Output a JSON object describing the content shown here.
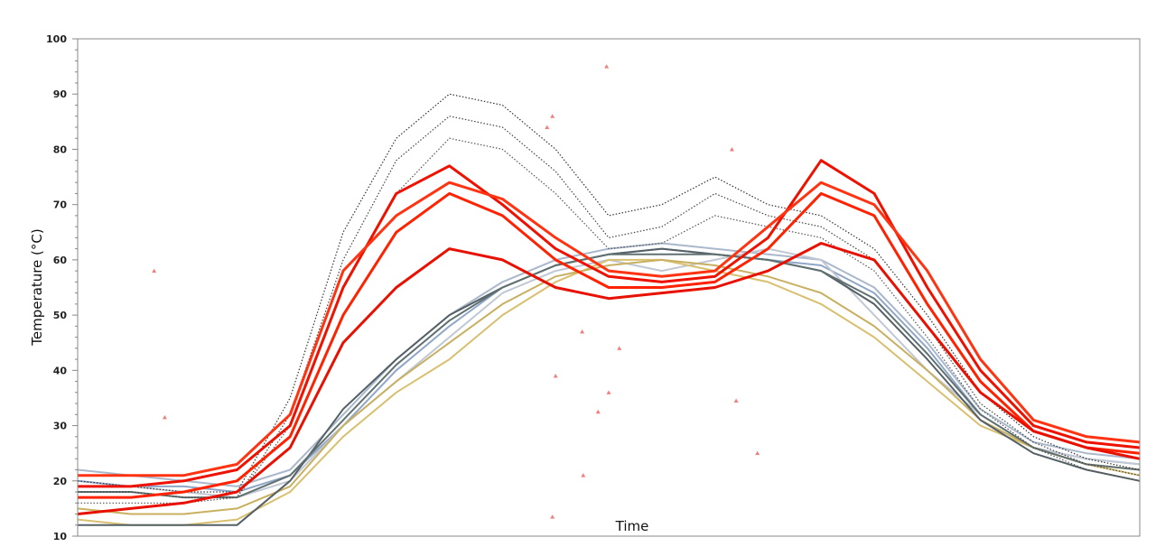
{
  "chart_data": {
    "type": "line",
    "title": "",
    "xlabel": "Time",
    "ylabel": "Temperature (°C)",
    "ylim": [
      10,
      100
    ],
    "yticks": [
      "10",
      "20",
      "30",
      "40",
      "50",
      "60",
      "70",
      "80",
      "90",
      "100"
    ],
    "y_minor_step": 2,
    "xlim": [
      0,
      100
    ],
    "x_ticks_shown": false,
    "grid": false,
    "legend": "none",
    "x": [
      0,
      5,
      10,
      15,
      20,
      25,
      30,
      35,
      40,
      45,
      50,
      55,
      60,
      65,
      70,
      75,
      80,
      85,
      90,
      95,
      100
    ],
    "series": [
      {
        "group": "black-dotted",
        "color": "#333333",
        "style": "dotted",
        "values": [
          20,
          19,
          18,
          18,
          35,
          65,
          82,
          90,
          88,
          80,
          68,
          70,
          75,
          70,
          68,
          62,
          50,
          36,
          28,
          24,
          22
        ]
      },
      {
        "group": "black-dotted",
        "color": "#444444",
        "style": "dotted",
        "values": [
          18,
          18,
          17,
          17,
          32,
          60,
          78,
          86,
          84,
          76,
          64,
          66,
          72,
          68,
          66,
          60,
          48,
          34,
          27,
          23,
          21
        ]
      },
      {
        "group": "black-dotted",
        "color": "#555555",
        "style": "dotted",
        "values": [
          16,
          16,
          16,
          17,
          30,
          55,
          72,
          82,
          80,
          72,
          62,
          63,
          68,
          66,
          64,
          58,
          46,
          33,
          26,
          22,
          20
        ]
      },
      {
        "group": "red",
        "color": "#ee1100",
        "style": "solid",
        "values": [
          19,
          19,
          20,
          22,
          30,
          55,
          72,
          77,
          70,
          62,
          57,
          56,
          57,
          64,
          78,
          72,
          55,
          40,
          30,
          27,
          26
        ]
      },
      {
        "group": "red",
        "color": "#ff2200",
        "style": "solid",
        "values": [
          17,
          17,
          18,
          20,
          28,
          50,
          65,
          72,
          68,
          60,
          55,
          55,
          56,
          62,
          72,
          68,
          52,
          38,
          29,
          26,
          25
        ]
      },
      {
        "group": "red",
        "color": "#e81000",
        "style": "solid",
        "values": [
          14,
          15,
          16,
          18,
          26,
          45,
          55,
          62,
          60,
          55,
          53,
          54,
          55,
          58,
          63,
          60,
          48,
          36,
          29,
          26,
          24
        ]
      },
      {
        "group": "red",
        "color": "#ff3311",
        "style": "solid",
        "values": [
          21,
          21,
          21,
          23,
          32,
          58,
          68,
          74,
          71,
          64,
          58,
          57,
          58,
          66,
          74,
          70,
          58,
          42,
          31,
          28,
          27
        ]
      },
      {
        "group": "blue-grey",
        "color": "#aab8cc",
        "style": "solid",
        "values": [
          22,
          21,
          20,
          19,
          22,
          32,
          42,
          50,
          56,
          60,
          62,
          63,
          62,
          61,
          60,
          55,
          45,
          33,
          27,
          25,
          24
        ]
      },
      {
        "group": "blue-grey",
        "color": "#8fa6c8",
        "style": "solid",
        "values": [
          20,
          19,
          19,
          18,
          21,
          30,
          40,
          48,
          55,
          59,
          61,
          62,
          61,
          60,
          59,
          54,
          44,
          32,
          26,
          24,
          23
        ]
      },
      {
        "group": "blue-grey",
        "color": "#c0c8d4",
        "style": "solid",
        "values": [
          19,
          19,
          18,
          17,
          20,
          30,
          38,
          46,
          54,
          58,
          60,
          58,
          60,
          62,
          60,
          50,
          40,
          32,
          26,
          24,
          23
        ]
      },
      {
        "group": "gold",
        "color": "#d8c070",
        "style": "solid",
        "values": [
          13,
          12,
          12,
          13,
          18,
          28,
          36,
          42,
          50,
          56,
          60,
          60,
          58,
          56,
          52,
          46,
          38,
          30,
          26,
          23,
          21
        ]
      },
      {
        "group": "gold",
        "color": "#c8b060",
        "style": "solid",
        "values": [
          15,
          14,
          14,
          15,
          19,
          30,
          38,
          45,
          52,
          57,
          59,
          60,
          59,
          57,
          54,
          48,
          40,
          31,
          26,
          23,
          22
        ]
      },
      {
        "group": "dark-grey",
        "color": "#556066",
        "style": "solid",
        "values": [
          12,
          12,
          12,
          12,
          20,
          33,
          42,
          50,
          55,
          59,
          61,
          62,
          61,
          60,
          58,
          52,
          42,
          31,
          25,
          22,
          20
        ]
      },
      {
        "group": "dark-grey",
        "color": "#607070",
        "style": "solid",
        "values": [
          18,
          18,
          17,
          17,
          21,
          31,
          41,
          49,
          55,
          59,
          61,
          61,
          61,
          60,
          58,
          53,
          43,
          32,
          26,
          23,
          22
        ]
      }
    ],
    "outliers": {
      "color": "#f08080",
      "points": [
        [
          7.2,
          58
        ],
        [
          8.2,
          31.5
        ],
        [
          49.8,
          95
        ],
        [
          44.7,
          86
        ],
        [
          44.2,
          84
        ],
        [
          47.6,
          21
        ],
        [
          44.7,
          13.5
        ],
        [
          61.6,
          80
        ],
        [
          64,
          25
        ],
        [
          62,
          34.5
        ],
        [
          51,
          44
        ],
        [
          50,
          36
        ],
        [
          49,
          32.5
        ],
        [
          47.5,
          47
        ],
        [
          45,
          39
        ]
      ]
    }
  }
}
